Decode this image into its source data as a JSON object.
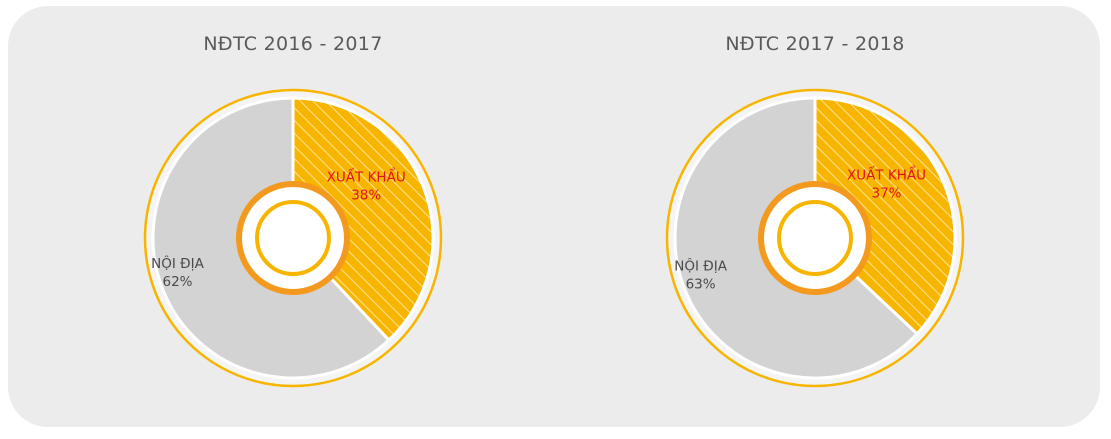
{
  "chart_data": [
    {
      "type": "pie",
      "title": "NĐTC 2016 - 2017",
      "slices": [
        {
          "label": "XUẤT KHẨU",
          "value": 38,
          "value_label": "38%",
          "color": "#f7b500",
          "label_color": "#e0141e",
          "pattern": "hatched"
        },
        {
          "label": "NỘI ĐỊA",
          "value": 62,
          "value_label": "62%",
          "color": "#d3d3d3",
          "label_color": "#4a4a4a",
          "pattern": "solid"
        }
      ]
    },
    {
      "type": "pie",
      "title": "NĐTC 2017 - 2018",
      "slices": [
        {
          "label": "XUẤT KHẨU",
          "value": 37,
          "value_label": "37%",
          "color": "#f7b500",
          "label_color": "#e0141e",
          "pattern": "hatched"
        },
        {
          "label": "NỘI ĐỊA",
          "value": 63,
          "value_label": "63%",
          "color": "#d3d3d3",
          "label_color": "#4a4a4a",
          "pattern": "solid"
        }
      ]
    }
  ],
  "colors": {
    "panel_background": "#ececec",
    "outer_ring": "#f7b500",
    "inner_ring": "#f39a1e",
    "title_text": "#5a5a5a"
  }
}
